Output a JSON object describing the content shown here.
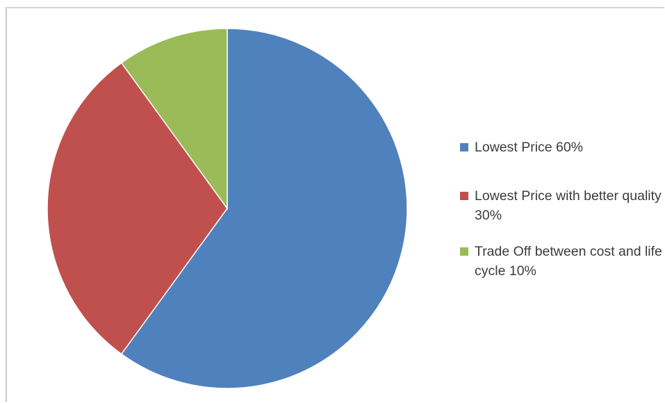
{
  "chart_data": {
    "type": "pie",
    "title": "",
    "slices": [
      {
        "label": "Lowest Price 60%",
        "value": 60,
        "color": "#4f81bd"
      },
      {
        "label": "Lowest Price with better quality 30%",
        "value": 30,
        "color": "#c0504d"
      },
      {
        "label": "Trade Off between cost and life cycle 10%",
        "value": 10,
        "color": "#9bbb59"
      }
    ],
    "start_angle_deg": 0,
    "direction": "clockwise",
    "legend_position": "right"
  }
}
